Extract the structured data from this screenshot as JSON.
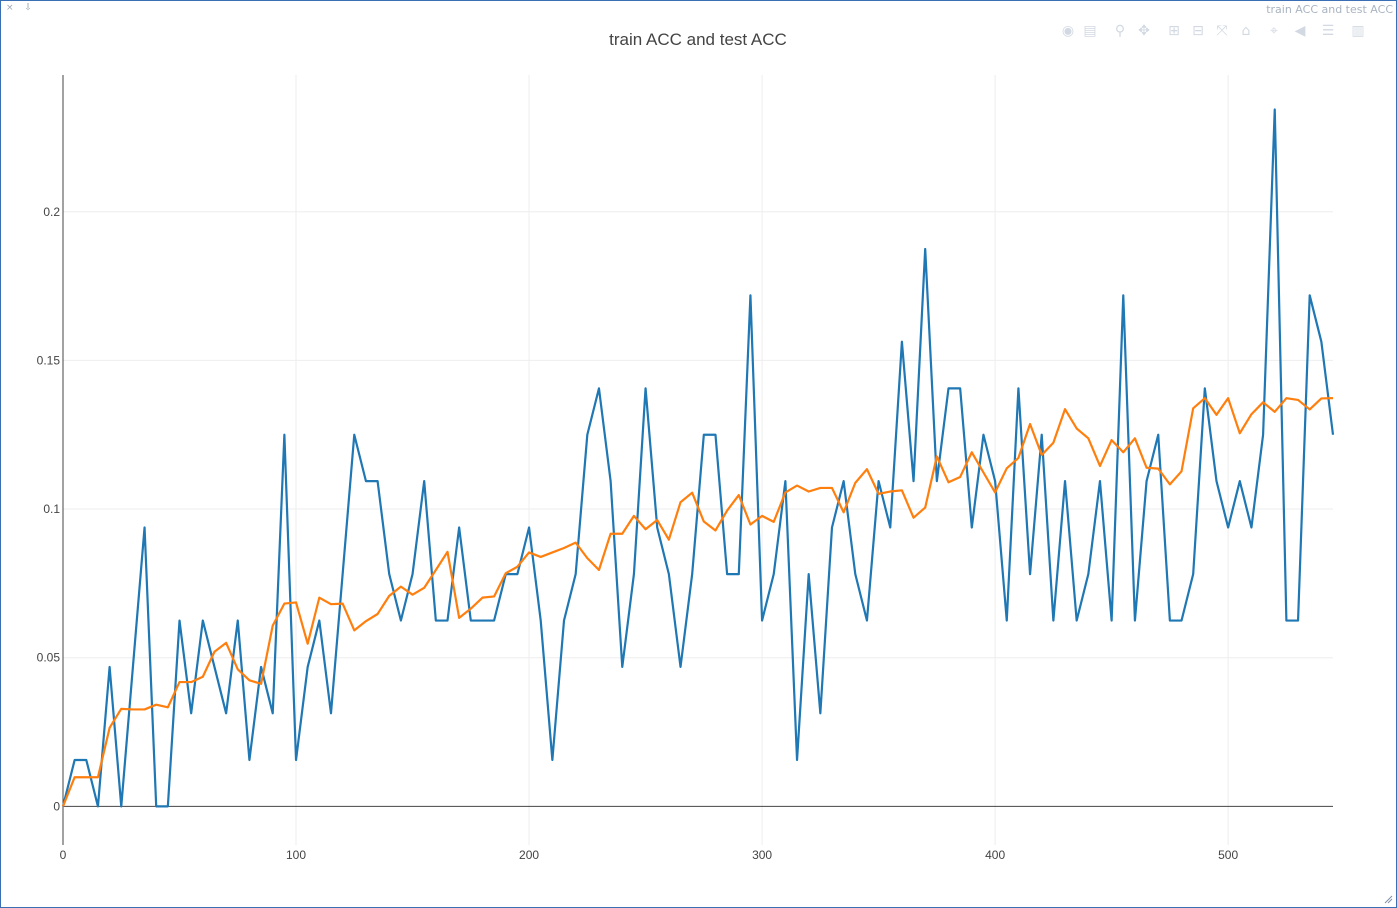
{
  "window": {
    "title": "train ACC and test ACC",
    "controls": "× ⇩"
  },
  "modebar": {
    "icons": [
      "camera-icon",
      "save-icon",
      "zoom-icon",
      "pan-icon",
      "zoom-in-icon",
      "zoom-out-icon",
      "autoscale-icon",
      "reset-axes-icon",
      "spike-lines-icon",
      "hover-closest-icon",
      "hover-compare-icon",
      "plotly-logo-icon"
    ],
    "glyphs": [
      "◉",
      "▤",
      "⚲",
      "✥",
      "⊞",
      "⊟",
      "⤧",
      "⌂",
      "⌖",
      "◀",
      "☰",
      "▥"
    ]
  },
  "chart_data": {
    "type": "line",
    "title": "train ACC and test ACC",
    "xlabel": "",
    "ylabel": "",
    "xlim": [
      0,
      545
    ],
    "ylim": [
      -0.013,
      0.246
    ],
    "x_ticks": [
      0,
      100,
      200,
      300,
      400,
      500
    ],
    "y_ticks": [
      0,
      0.05,
      0.1,
      0.15,
      0.2
    ],
    "y_tick_labels": [
      "0",
      "0.05",
      "0.1",
      "0.15",
      "0.2"
    ],
    "grid": true,
    "legend": "none",
    "series": [
      {
        "color": "#1f77b4",
        "x": [
          0,
          5,
          10,
          15,
          20,
          25,
          30,
          35,
          40,
          45,
          50,
          55,
          60,
          65,
          70,
          75,
          80,
          85,
          90,
          95,
          100,
          105,
          110,
          115,
          120,
          125,
          130,
          135,
          140,
          145,
          150,
          155,
          160,
          165,
          170,
          175,
          180,
          185,
          190,
          195,
          200,
          205,
          210,
          215,
          220,
          225,
          230,
          235,
          240,
          245,
          250,
          255,
          260,
          265,
          270,
          275,
          280,
          285,
          290,
          295,
          300,
          305,
          310,
          315,
          320,
          325,
          330,
          335,
          340,
          345,
          350,
          355,
          360,
          365,
          370,
          375,
          380,
          385,
          390,
          395,
          400,
          405,
          410,
          415,
          420,
          425,
          430,
          435,
          440,
          445,
          450,
          455,
          460,
          465,
          470,
          475,
          480,
          485,
          490,
          495,
          500,
          505,
          510,
          515,
          520,
          525,
          530,
          535,
          540,
          545
        ],
        "values": [
          0,
          0.0156,
          0.0156,
          0,
          0.0469,
          0,
          0.0469,
          0.0938,
          0,
          0,
          0.0625,
          0.0313,
          0.0625,
          0.0469,
          0.0313,
          0.0625,
          0.0156,
          0.0469,
          0.0313,
          0.125,
          0.0156,
          0.0469,
          0.0625,
          0.0313,
          0.0781,
          0.125,
          0.1094,
          0.1094,
          0.0781,
          0.0625,
          0.0781,
          0.1094,
          0.0625,
          0.0625,
          0.0938,
          0.0625,
          0.0625,
          0.0625,
          0.0781,
          0.0781,
          0.0938,
          0.0625,
          0.0156,
          0.0625,
          0.0781,
          0.125,
          0.1406,
          0.1094,
          0.0469,
          0.0781,
          0.1406,
          0.0938,
          0.0781,
          0.0469,
          0.0781,
          0.125,
          0.125,
          0.0781,
          0.0781,
          0.1719,
          0.0625,
          0.0781,
          0.1094,
          0.0156,
          0.0781,
          0.0313,
          0.0938,
          0.1094,
          0.0781,
          0.0625,
          0.1094,
          0.0938,
          0.1563,
          0.1094,
          0.1875,
          0.1094,
          0.1406,
          0.1406,
          0.0938,
          0.125,
          0.1094,
          0.0625,
          0.1406,
          0.0781,
          0.125,
          0.0625,
          0.1094,
          0.0625,
          0.0781,
          0.1094,
          0.0625,
          0.1719,
          0.0625,
          0.1094,
          0.125,
          0.0625,
          0.0625,
          0.0781,
          0.1406,
          0.1094,
          0.0938,
          0.1094,
          0.0938,
          0.125,
          0.2344,
          0.0625,
          0.0625,
          0.1719,
          0.1563,
          0.125
        ]
      },
      {
        "color": "#ff7f0e",
        "x": [
          0,
          5,
          10,
          15,
          20,
          25,
          30,
          35,
          40,
          45,
          50,
          55,
          60,
          65,
          70,
          75,
          80,
          85,
          90,
          95,
          100,
          105,
          110,
          115,
          120,
          125,
          130,
          135,
          140,
          145,
          150,
          155,
          160,
          165,
          170,
          175,
          180,
          185,
          190,
          195,
          200,
          205,
          210,
          215,
          220,
          225,
          230,
          235,
          240,
          245,
          250,
          255,
          260,
          265,
          270,
          275,
          280,
          285,
          290,
          295,
          300,
          305,
          310,
          315,
          320,
          325,
          330,
          335,
          340,
          345,
          350,
          355,
          360,
          365,
          370,
          375,
          380,
          385,
          390,
          395,
          400,
          405,
          410,
          415,
          420,
          425,
          430,
          435,
          440,
          445,
          450,
          455,
          460,
          465,
          470,
          475,
          480,
          485,
          490,
          495,
          500,
          505,
          510,
          515,
          520,
          525,
          530,
          535,
          540,
          545
        ],
        "values": [
          0,
          0.0098,
          0.0098,
          0.0098,
          0.0264,
          0.0328,
          0.0326,
          0.0326,
          0.0342,
          0.0333,
          0.0418,
          0.0418,
          0.0436,
          0.052,
          0.055,
          0.0461,
          0.0424,
          0.0412,
          0.0608,
          0.0682,
          0.0686,
          0.0547,
          0.0702,
          0.068,
          0.0682,
          0.0592,
          0.0623,
          0.0647,
          0.0708,
          0.0739,
          0.0712,
          0.0735,
          0.0795,
          0.0856,
          0.0634,
          0.0665,
          0.0702,
          0.0706,
          0.0784,
          0.0806,
          0.0854,
          0.0839,
          0.0854,
          0.0869,
          0.0887,
          0.0835,
          0.0795,
          0.0917,
          0.0917,
          0.0977,
          0.0932,
          0.0963,
          0.0897,
          0.1023,
          0.1055,
          0.0958,
          0.0928,
          0.0995,
          0.1047,
          0.0948,
          0.0977,
          0.0957,
          0.1056,
          0.1079,
          0.1059,
          0.1071,
          0.1071,
          0.0989,
          0.1088,
          0.1134,
          0.1051,
          0.1059,
          0.1063,
          0.0971,
          0.1005,
          0.1177,
          0.109,
          0.1108,
          0.1191,
          0.1123,
          0.1056,
          0.1137,
          0.1172,
          0.1286,
          0.1182,
          0.1223,
          0.1336,
          0.1271,
          0.1238,
          0.1145,
          0.1232,
          0.1191,
          0.1238,
          0.1139,
          0.1136,
          0.1083,
          0.1127,
          0.1339,
          0.1373,
          0.1317,
          0.1373,
          0.1255,
          0.1319,
          0.1359,
          0.1327,
          0.1373,
          0.1367,
          0.1335,
          0.1372,
          0.1373
        ]
      }
    ]
  }
}
